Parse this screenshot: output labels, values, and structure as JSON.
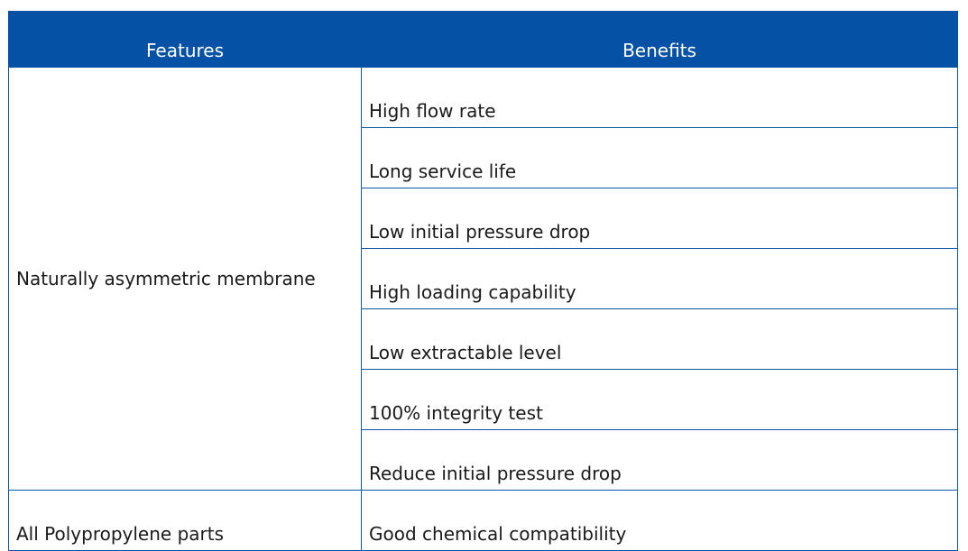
{
  "table": {
    "headers": [
      "Features",
      "Benefits"
    ],
    "groups": [
      {
        "feature": "Naturally asymmetric membrane",
        "benefits": [
          "High flow rate",
          "Long service life",
          "Low initial pressure drop",
          "High loading capability",
          "Low extractable level",
          "100% integrity test",
          "Reduce initial pressure drop"
        ]
      },
      {
        "feature": "All Polypropylene parts",
        "benefits": [
          "Good chemical compatibility"
        ]
      }
    ]
  },
  "colors": {
    "header_background": "#0451a5",
    "header_text": "#ffffff",
    "border": "#0a56a8"
  }
}
